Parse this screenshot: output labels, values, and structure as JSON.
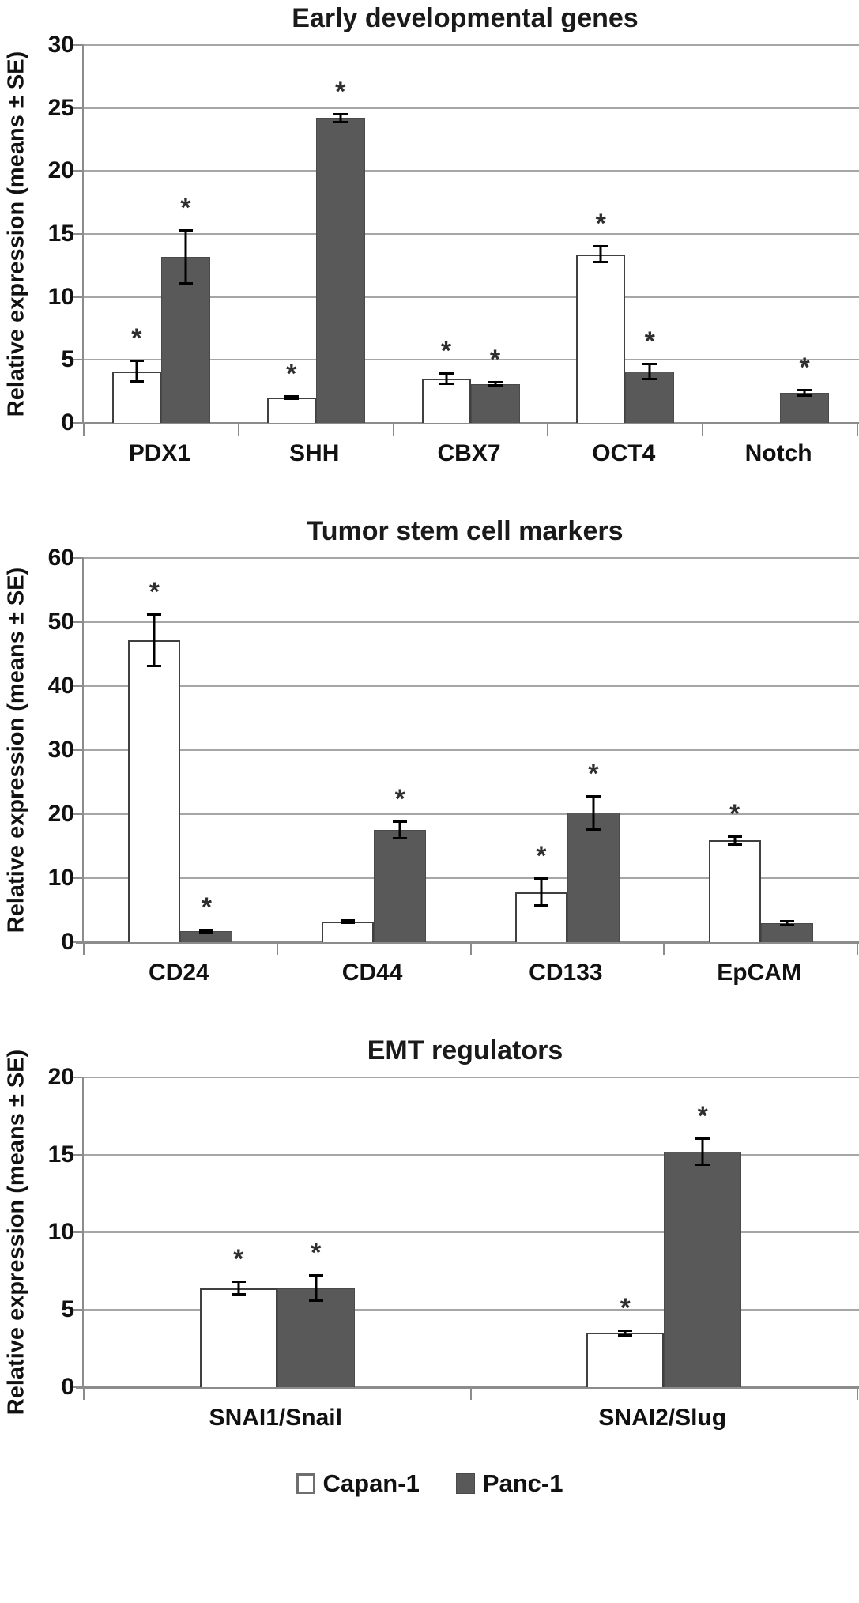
{
  "figure": {
    "y_axis_label": "Relative expression (means ± SE)",
    "significance_marker": "*",
    "colors": {
      "capan1_fill": "#ffffff",
      "capan1_border": "#404040",
      "panc1_fill": "#595959",
      "gridline": "#a6a6a6",
      "axis": "#8c8c8c",
      "error_bar": "#000000"
    },
    "legend": [
      {
        "label": "Capan-1",
        "swatch": "white-square"
      },
      {
        "label": "Panc-1",
        "swatch": "dark-gray-square"
      }
    ]
  },
  "chart_data": [
    {
      "type": "bar",
      "title": "Early developmental genes",
      "ylabel": "Relative expression (means ± SE)",
      "ylim": [
        0,
        30
      ],
      "ytick_step": 5,
      "yticks": [
        0,
        5,
        10,
        15,
        20,
        25,
        30
      ],
      "grid": true,
      "legend_position": "bottom-shared",
      "categories": [
        "PDX1",
        "SHH",
        "CBX7",
        "OCT4",
        "Notch"
      ],
      "series": [
        {
          "name": "Capan-1",
          "values": [
            4.1,
            2.0,
            3.5,
            13.4,
            null
          ],
          "se": [
            0.9,
            0.2,
            0.5,
            0.7,
            null
          ],
          "sig": [
            true,
            true,
            true,
            true,
            false
          ]
        },
        {
          "name": "Panc-1",
          "values": [
            13.2,
            24.2,
            3.1,
            4.1,
            2.4
          ],
          "se": [
            2.2,
            0.4,
            0.2,
            0.7,
            0.3
          ],
          "sig": [
            true,
            true,
            true,
            true,
            true
          ]
        }
      ]
    },
    {
      "type": "bar",
      "title": "Tumor stem cell markers",
      "ylabel": "Relative expression (means ± SE)",
      "ylim": [
        0,
        60
      ],
      "ytick_step": 10,
      "yticks": [
        0,
        10,
        20,
        30,
        40,
        50,
        60
      ],
      "grid": true,
      "legend_position": "bottom-shared",
      "categories": [
        "CD24",
        "CD44",
        "CD133",
        "EpCAM"
      ],
      "series": [
        {
          "name": "Capan-1",
          "values": [
            47.2,
            3.2,
            7.8,
            15.9
          ],
          "se": [
            4.2,
            0.4,
            2.3,
            0.8
          ],
          "sig": [
            true,
            false,
            true,
            true
          ]
        },
        {
          "name": "Panc-1",
          "values": [
            1.7,
            17.5,
            20.2,
            3.0
          ],
          "se": [
            0.4,
            1.5,
            2.8,
            0.5
          ],
          "sig": [
            true,
            true,
            true,
            false
          ]
        }
      ]
    },
    {
      "type": "bar",
      "title": "EMT regulators",
      "ylabel": "Relative expression (means ± SE)",
      "ylim": [
        0,
        20
      ],
      "ytick_step": 5,
      "yticks": [
        0,
        5,
        10,
        15,
        20
      ],
      "grid": true,
      "legend_position": "bottom-shared",
      "categories": [
        "SNAI1/Snail",
        "SNAI2/Slug"
      ],
      "series": [
        {
          "name": "Capan-1",
          "values": [
            6.4,
            3.5
          ],
          "se": [
            0.5,
            0.25
          ],
          "sig": [
            true,
            true
          ]
        },
        {
          "name": "Panc-1",
          "values": [
            6.4,
            15.2
          ],
          "se": [
            0.9,
            0.9
          ],
          "sig": [
            true,
            true
          ]
        }
      ]
    }
  ]
}
